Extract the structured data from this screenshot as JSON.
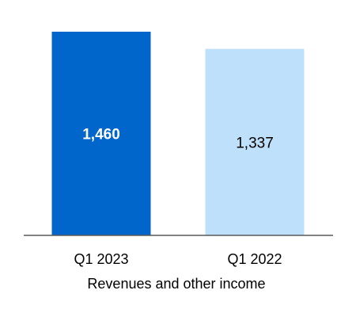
{
  "chart_data": {
    "type": "bar",
    "categories": [
      "Q1 2023",
      "Q1 2022"
    ],
    "values": [
      1460,
      1337
    ],
    "data_labels": [
      "1,460",
      "1,337"
    ],
    "xlabel": "Revenues and other income",
    "ylim": [
      0,
      1460
    ],
    "grid": false,
    "legend": "none",
    "colors": {
      "bars": [
        "#0066cc",
        "#bfe0fa"
      ],
      "labels": [
        "#ffffff",
        "#000000"
      ],
      "label_weight": [
        "bold",
        "normal"
      ],
      "axis": "#595959"
    }
  }
}
